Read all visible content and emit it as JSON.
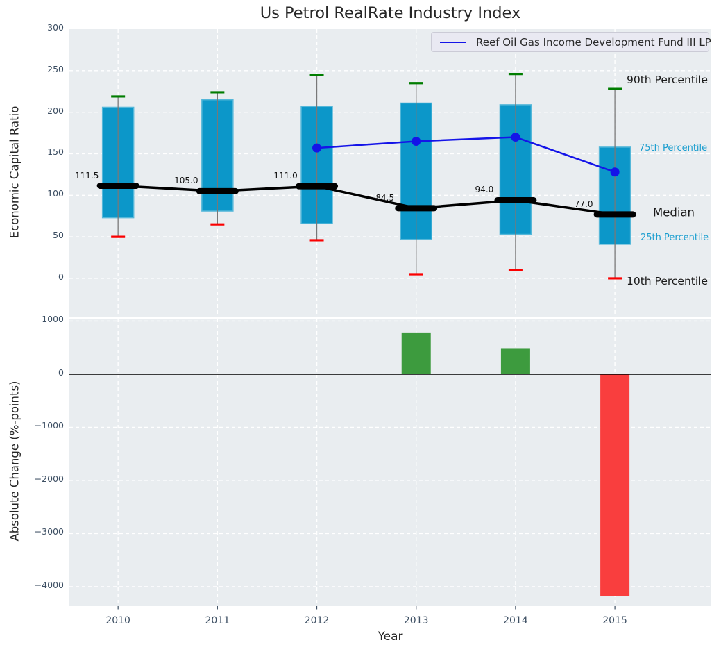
{
  "title": "Us Petrol RealRate Industry Index",
  "chart_data": [
    {
      "type": "boxplot+line",
      "title": "Us Petrol RealRate Industry Index",
      "ylabel": "Economic Capital Ratio",
      "categories": [
        2010,
        2011,
        2012,
        2013,
        2014,
        2015
      ],
      "ylim": [
        -46,
        300
      ],
      "xlim": [
        2009.51,
        2015.97
      ],
      "yticks": [
        0,
        50,
        100,
        150,
        200,
        250,
        300
      ],
      "ytick_labels": [
        "0",
        "50",
        "100",
        "150",
        "200",
        "250",
        "300"
      ],
      "grid": true,
      "legend_position": "upper right",
      "percentiles": {
        "p90": [
          219,
          224,
          245,
          235,
          246,
          228
        ],
        "p75": [
          206,
          215,
          207,
          211,
          209,
          158
        ],
        "median": [
          111.5,
          105.0,
          111.0,
          84.5,
          94.0,
          77.0
        ],
        "p25": [
          73,
          81,
          66,
          47,
          53,
          41
        ],
        "p10": [
          50,
          65,
          46,
          5,
          10,
          0
        ]
      },
      "median_labels": [
        "111.5",
        "105.0",
        "111.0",
        "84.5",
        "94.0",
        "77.0"
      ],
      "series": [
        {
          "name": "Reef Oil Gas Income Development Fund III LP",
          "x": [
            2012,
            2013,
            2014,
            2015
          ],
          "y": [
            157,
            165,
            170,
            128
          ],
          "color": "#1414e8",
          "marker": "circle"
        }
      ],
      "annotations": [
        {
          "text": "90th Percentile",
          "value": 237,
          "color": "#1a1a1a",
          "size": 15.5
        },
        {
          "text": "75th Percentile",
          "value": 155,
          "color": "#1b9ecf",
          "size": 13
        },
        {
          "text": "Median",
          "value": 78,
          "color": "#1a1a1a",
          "size": 16.5
        },
        {
          "text": "25th Percentile",
          "value": 48,
          "color": "#1b9ecf",
          "size": 13
        },
        {
          "text": "10th Percentile",
          "value": -5,
          "color": "#1a1a1a",
          "size": 15.5
        }
      ],
      "colors": {
        "box_fill": "#0c97c9",
        "box_edge": "#54b7d9",
        "whisker": "#787878",
        "p90_cap": "#007d00",
        "p10_cap": "#fb0000",
        "median": "#000000",
        "background": "#e9edf0",
        "grid": "#ffffff"
      }
    },
    {
      "type": "bar",
      "ylabel": "Absolute Change (%-points)",
      "xlabel": "Year",
      "categories": [
        2010,
        2011,
        2012,
        2013,
        2014,
        2015
      ],
      "xtick_labels": [
        "2010",
        "2011",
        "2012",
        "2013",
        "2014",
        "2015"
      ],
      "values": [
        null,
        null,
        null,
        785,
        490,
        -4180
      ],
      "ylim": [
        -4366,
        1045
      ],
      "yticks": [
        1000,
        0,
        -1000,
        -2000,
        -3000,
        -4000
      ],
      "ytick_labels": [
        "1000",
        "0",
        "−1000",
        "−2000",
        "−3000",
        "−4000"
      ],
      "colors": {
        "positive": "#3d9b3e",
        "negative": "#f93e3e",
        "zero_line": "#000000",
        "background": "#e9edf0",
        "grid": "#ffffff"
      }
    }
  ],
  "text_colors": {
    "tick": "#3d4f63",
    "label": "#262626"
  }
}
